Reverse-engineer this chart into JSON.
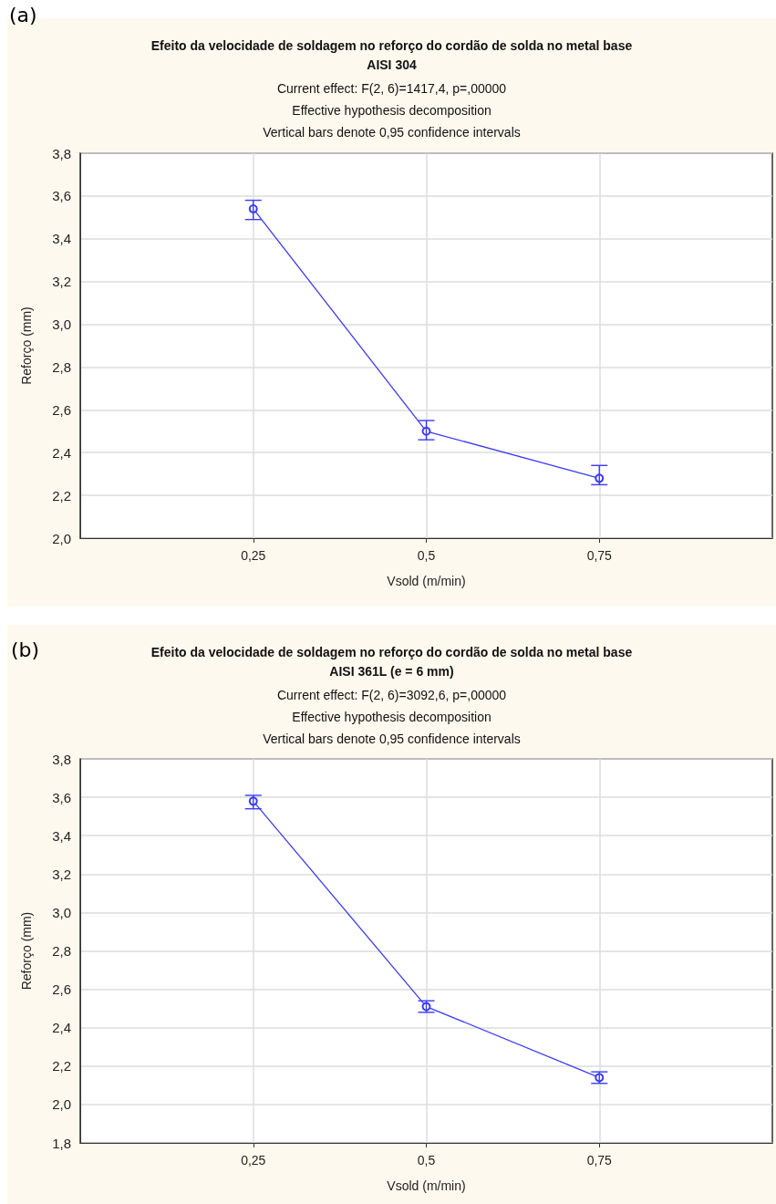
{
  "chart_data": [
    {
      "type": "line",
      "title": "Efeito da velocidade de soldagem no reforço do cordão de solda no metal base\nAISI 304",
      "subtitle": "Current effect: F(2, 6)=1417,4, p=,00000\nEffective hypothesis decomposition\nVertical bars denote 0,95 confidence intervals",
      "xlabel": "Vsold (m/min)",
      "ylabel": "Reforço (mm)",
      "annotations": [
        "(a)"
      ],
      "x": [
        0.25,
        0.5,
        0.75
      ],
      "series": [
        {
          "color": "#3b3bf5",
          "values": [
            3.54,
            2.5,
            2.28
          ],
          "errors": [
            [
              3.49,
              3.58
            ],
            [
              2.46,
              2.55
            ],
            [
              2.25,
              2.34
            ]
          ]
        }
      ],
      "xlim": [
        0,
        1
      ],
      "xticks": [
        {
          "value": 0.25,
          "label": "0,25"
        },
        {
          "value": 0.5,
          "label": "0,5"
        },
        {
          "value": 0.75,
          "label": "0,75"
        }
      ],
      "ylim": [
        2.0,
        3.8
      ],
      "yticks": [
        {
          "value": 2.0,
          "label": "2,0"
        },
        {
          "value": 2.2,
          "label": "2,2"
        },
        {
          "value": 2.4,
          "label": "2,4"
        },
        {
          "value": 2.6,
          "label": "2,6"
        },
        {
          "value": 2.8,
          "label": "2,8"
        },
        {
          "value": 3.0,
          "label": "3,0"
        },
        {
          "value": 3.2,
          "label": "3,2"
        },
        {
          "value": 3.4,
          "label": "3,4"
        },
        {
          "value": 3.6,
          "label": "3,6"
        },
        {
          "value": 3.8,
          "label": "3,8"
        }
      ],
      "grid": true,
      "marker": "circle",
      "line_style": "solid"
    },
    {
      "type": "line",
      "title": "Efeito da velocidade de soldagem no reforço do cordão de solda no metal base\nAISI 361L (e = 6 mm)",
      "subtitle": "Current effect: F(2, 6)=3092,6, p=,00000\nEffective hypothesis decomposition\nVertical bars denote 0,95 confidence intervals",
      "xlabel": "Vsold (m/min)",
      "ylabel": "Reforço (mm)",
      "annotations": [
        "(b)"
      ],
      "x": [
        0.25,
        0.5,
        0.75
      ],
      "series": [
        {
          "color": "#3b3bf5",
          "values": [
            3.58,
            2.51,
            2.14
          ],
          "errors": [
            [
              3.54,
              3.61
            ],
            [
              2.48,
              2.54
            ],
            [
              2.11,
              2.17
            ]
          ]
        }
      ],
      "xlim": [
        0,
        1
      ],
      "xticks": [
        {
          "value": 0.25,
          "label": "0,25"
        },
        {
          "value": 0.5,
          "label": "0,5"
        },
        {
          "value": 0.75,
          "label": "0,75"
        }
      ],
      "ylim": [
        1.8,
        3.8
      ],
      "yticks": [
        {
          "value": 1.8,
          "label": "1,8"
        },
        {
          "value": 2.0,
          "label": "2,0"
        },
        {
          "value": 2.2,
          "label": "2,2"
        },
        {
          "value": 2.4,
          "label": "2,4"
        },
        {
          "value": 2.6,
          "label": "2,6"
        },
        {
          "value": 2.8,
          "label": "2,8"
        },
        {
          "value": 3.0,
          "label": "3,0"
        },
        {
          "value": 3.2,
          "label": "3,2"
        },
        {
          "value": 3.4,
          "label": "3,4"
        },
        {
          "value": 3.6,
          "label": "3,6"
        },
        {
          "value": 3.8,
          "label": "3,8"
        }
      ],
      "grid": true,
      "marker": "circle",
      "line_style": "solid"
    }
  ]
}
